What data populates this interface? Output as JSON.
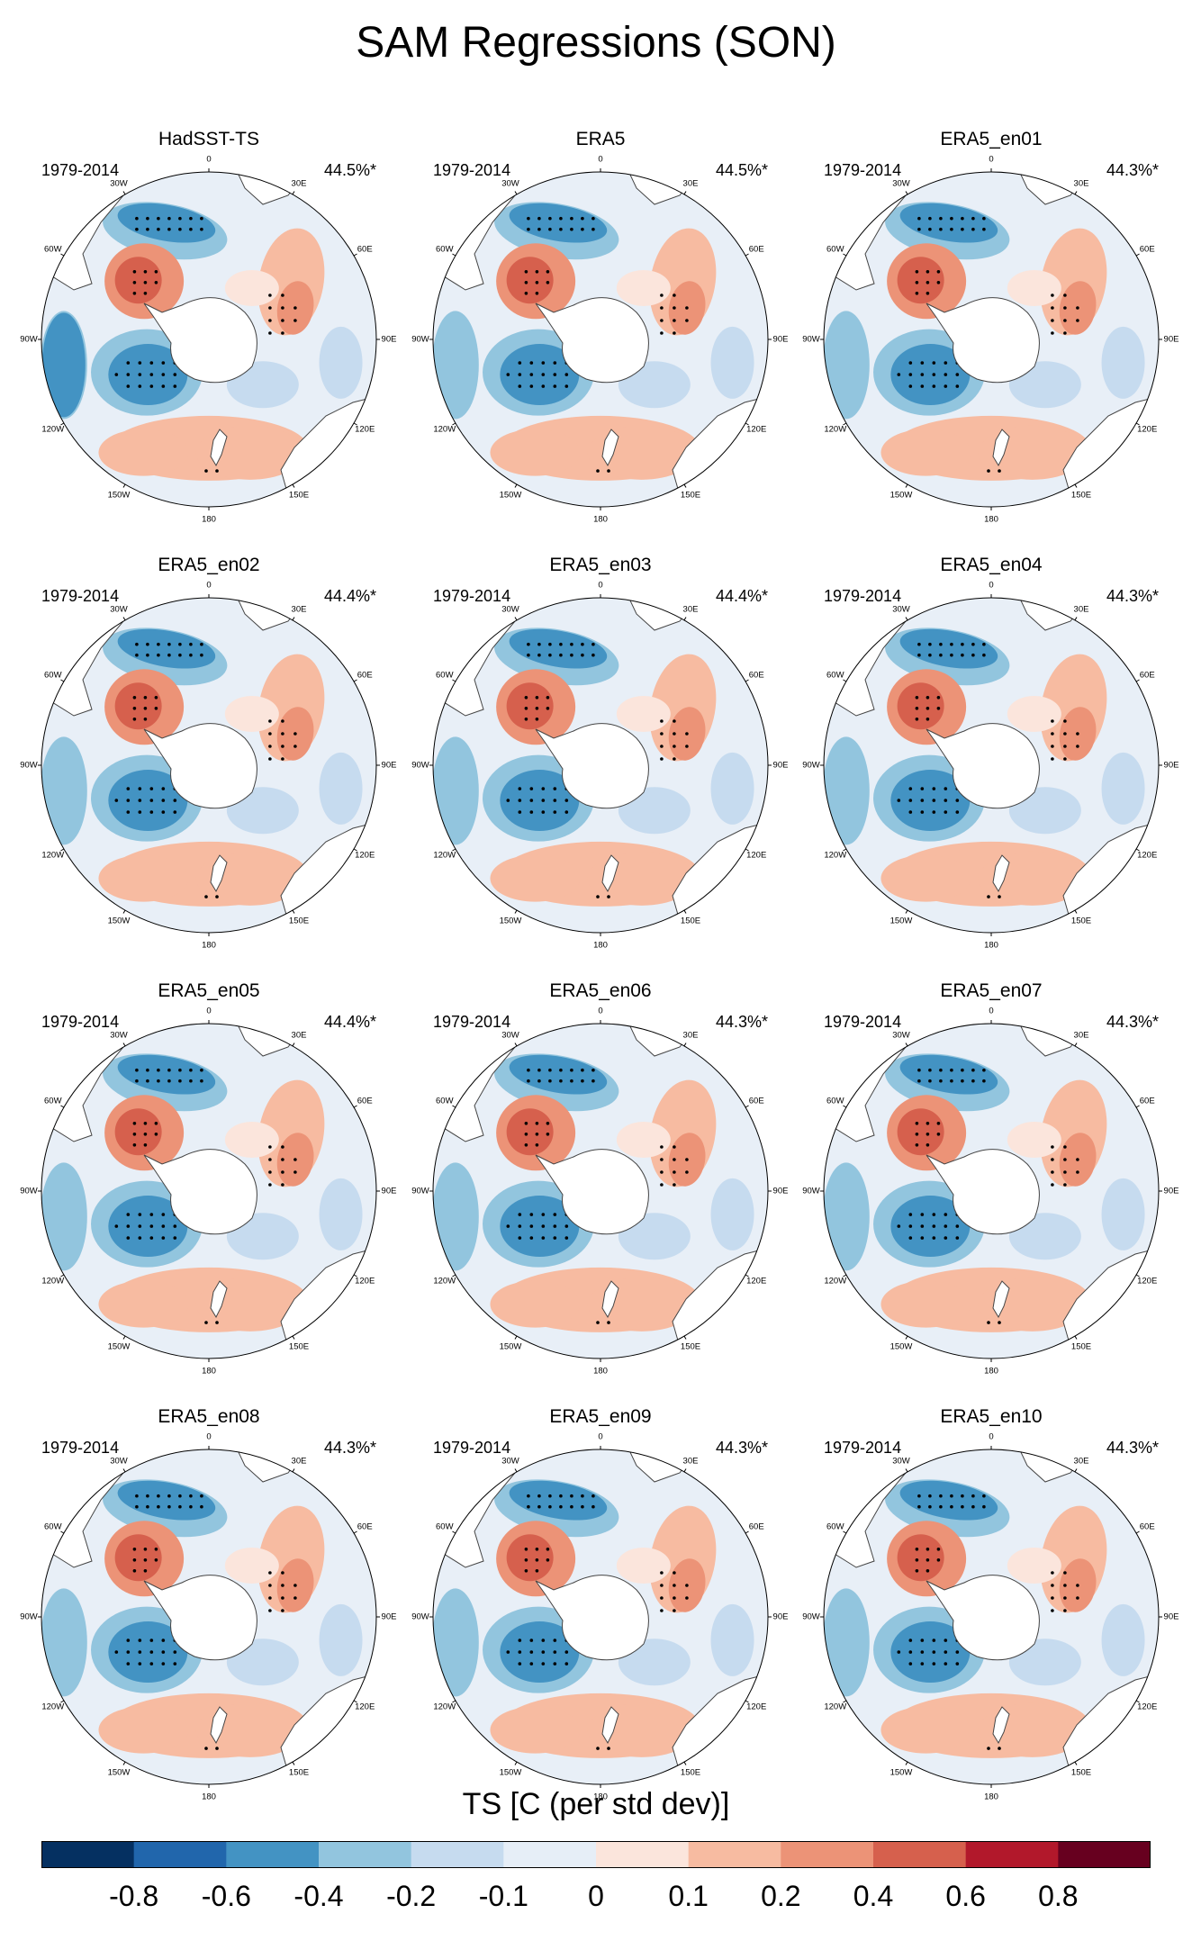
{
  "title": "SAM Regressions (SON)",
  "panels": [
    {
      "name": "HadSST-TS",
      "period": "1979-2014",
      "variance": "44.5%*"
    },
    {
      "name": "ERA5",
      "period": "1979-2014",
      "variance": "44.5%*"
    },
    {
      "name": "ERA5_en01",
      "period": "1979-2014",
      "variance": "44.3%*"
    },
    {
      "name": "ERA5_en02",
      "period": "1979-2014",
      "variance": "44.4%*"
    },
    {
      "name": "ERA5_en03",
      "period": "1979-2014",
      "variance": "44.4%*"
    },
    {
      "name": "ERA5_en04",
      "period": "1979-2014",
      "variance": "44.3%*"
    },
    {
      "name": "ERA5_en05",
      "period": "1979-2014",
      "variance": "44.4%*"
    },
    {
      "name": "ERA5_en06",
      "period": "1979-2014",
      "variance": "44.3%*"
    },
    {
      "name": "ERA5_en07",
      "period": "1979-2014",
      "variance": "44.3%*"
    },
    {
      "name": "ERA5_en08",
      "period": "1979-2014",
      "variance": "44.3%*"
    },
    {
      "name": "ERA5_en09",
      "period": "1979-2014",
      "variance": "44.3%*"
    },
    {
      "name": "ERA5_en10",
      "period": "1979-2014",
      "variance": "44.3%*"
    }
  ],
  "longitude_labels": [
    "0",
    "30E",
    "60E",
    "90E",
    "120E",
    "150E",
    "180",
    "150W",
    "120W",
    "90W",
    "60W",
    "30W"
  ],
  "colorbar": {
    "title": "TS [C (per std dev)]",
    "tick_labels": [
      "-0.8",
      "-0.6",
      "-0.4",
      "-0.2",
      "-0.1",
      "0",
      "0.1",
      "0.2",
      "0.4",
      "0.6",
      "0.8"
    ],
    "colors": [
      "#053061",
      "#2166ac",
      "#4393c3",
      "#92c5de",
      "#c6dbef",
      "#e6eef7",
      "#fbe5dc",
      "#f7bba1",
      "#ec9377",
      "#d6604d",
      "#b2182b",
      "#67001f"
    ]
  },
  "palette": {
    "land": "#ffffff",
    "coast": "#444444",
    "neutral_ocean": "#e8eff7"
  }
}
